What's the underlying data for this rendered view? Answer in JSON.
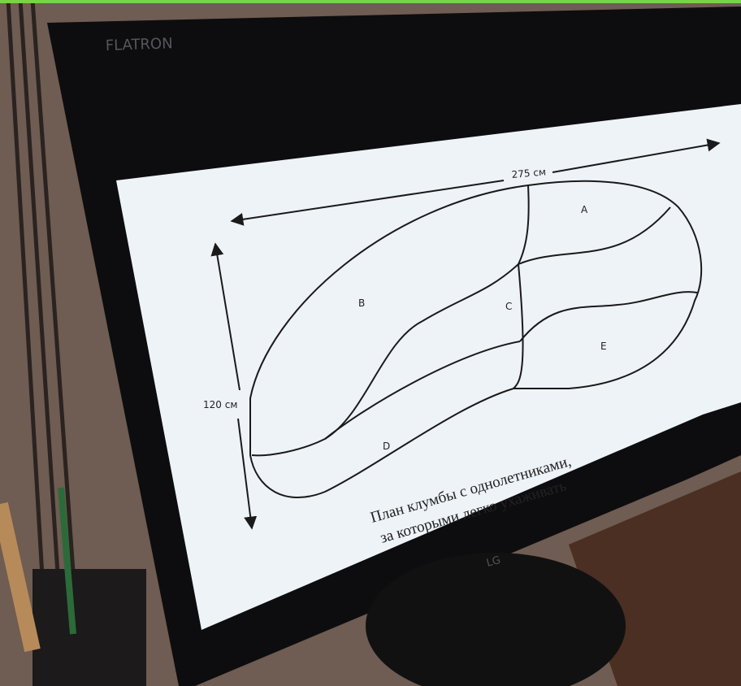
{
  "monitor": {
    "brand": "FLATRON",
    "logo": "LG"
  },
  "diagram": {
    "width_label": "275 см",
    "height_label": "120 см",
    "regions": [
      "A",
      "B",
      "C",
      "D",
      "E"
    ],
    "caption": [
      "План клумбы с однолетниками,",
      "за которыми легко ухаживать"
    ]
  }
}
